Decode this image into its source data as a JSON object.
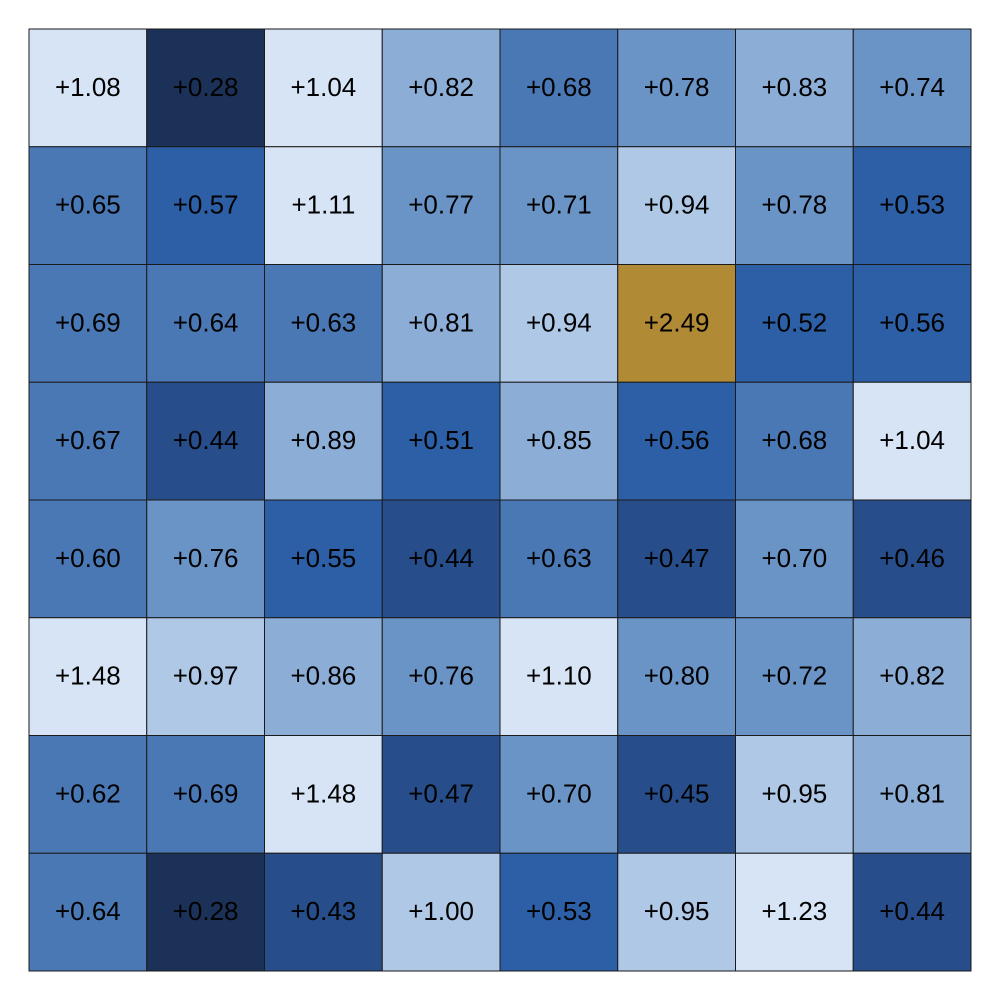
{
  "chart_data": {
    "type": "heatmap",
    "values": [
      [
        1.08,
        0.28,
        1.04,
        0.82,
        0.68,
        0.78,
        0.83,
        0.74
      ],
      [
        0.65,
        0.57,
        1.11,
        0.77,
        0.71,
        0.94,
        0.78,
        0.53
      ],
      [
        0.69,
        0.64,
        0.63,
        0.81,
        0.94,
        2.49,
        0.52,
        0.56
      ],
      [
        0.67,
        0.44,
        0.89,
        0.51,
        0.85,
        0.56,
        0.68,
        1.04
      ],
      [
        0.6,
        0.76,
        0.55,
        0.44,
        0.63,
        0.47,
        0.7,
        0.46
      ],
      [
        1.48,
        0.97,
        0.86,
        0.76,
        1.1,
        0.8,
        0.72,
        0.82
      ],
      [
        0.62,
        0.69,
        1.48,
        0.47,
        0.7,
        0.45,
        0.95,
        0.81
      ],
      [
        0.64,
        0.28,
        0.43,
        1.0,
        0.53,
        0.95,
        1.23,
        0.44
      ]
    ],
    "value_labels": [
      [
        "+1.08",
        "+0.28",
        "+1.04",
        "+0.82",
        "+0.68",
        "+0.78",
        "+0.83",
        "+0.74"
      ],
      [
        "+0.65",
        "+0.57",
        "+1.11",
        "+0.77",
        "+0.71",
        "+0.94",
        "+0.78",
        "+0.53"
      ],
      [
        "+0.69",
        "+0.64",
        "+0.63",
        "+0.81",
        "+0.94",
        "+2.49",
        "+0.52",
        "+0.56"
      ],
      [
        "+0.67",
        "+0.44",
        "+0.89",
        "+0.51",
        "+0.85",
        "+0.56",
        "+0.68",
        "+1.04"
      ],
      [
        "+0.60",
        "+0.76",
        "+0.55",
        "+0.44",
        "+0.63",
        "+0.47",
        "+0.70",
        "+0.46"
      ],
      [
        "+1.48",
        "+0.97",
        "+0.86",
        "+0.76",
        "+1.10",
        "+0.80",
        "+0.72",
        "+0.82"
      ],
      [
        "+0.62",
        "+0.69",
        "+1.48",
        "+0.47",
        "+0.70",
        "+0.45",
        "+0.95",
        "+0.81"
      ],
      [
        "+0.64",
        "+0.28",
        "+0.43",
        "+1.00",
        "+0.53",
        "+0.95",
        "+1.23",
        "+0.44"
      ]
    ],
    "colors": [
      [
        "#d6e4f5",
        "#1c3157",
        "#d6e4f5",
        "#8badd6",
        "#4a78b4",
        "#6a93c6",
        "#8badd6",
        "#6a93c6"
      ],
      [
        "#4a78b4",
        "#2c5fa5",
        "#d6e4f5",
        "#6a93c6",
        "#6a93c6",
        "#aec8e6",
        "#6a93c6",
        "#2c5fa5"
      ],
      [
        "#4a78b4",
        "#4a78b4",
        "#4a78b4",
        "#8badd6",
        "#aec8e6",
        "#b08a35",
        "#2c5fa5",
        "#2c5fa5"
      ],
      [
        "#4a78b4",
        "#274e8a",
        "#8badd6",
        "#2c5fa5",
        "#8badd6",
        "#2c5fa5",
        "#4a78b4",
        "#d6e4f5"
      ],
      [
        "#4a78b4",
        "#6a93c6",
        "#2c5fa5",
        "#274e8a",
        "#4a78b4",
        "#274e8a",
        "#6a93c6",
        "#274e8a"
      ],
      [
        "#d6e4f5",
        "#aec8e6",
        "#8badd6",
        "#6a93c6",
        "#d6e4f5",
        "#6a93c6",
        "#6a93c6",
        "#8badd6"
      ],
      [
        "#4a78b4",
        "#4a78b4",
        "#d6e4f5",
        "#274e8a",
        "#6a93c6",
        "#274e8a",
        "#aec8e6",
        "#8badd6"
      ],
      [
        "#4a78b4",
        "#1c3157",
        "#274e8a",
        "#aec8e6",
        "#2c5fa5",
        "#aec8e6",
        "#d6e4f5",
        "#274e8a"
      ]
    ]
  }
}
